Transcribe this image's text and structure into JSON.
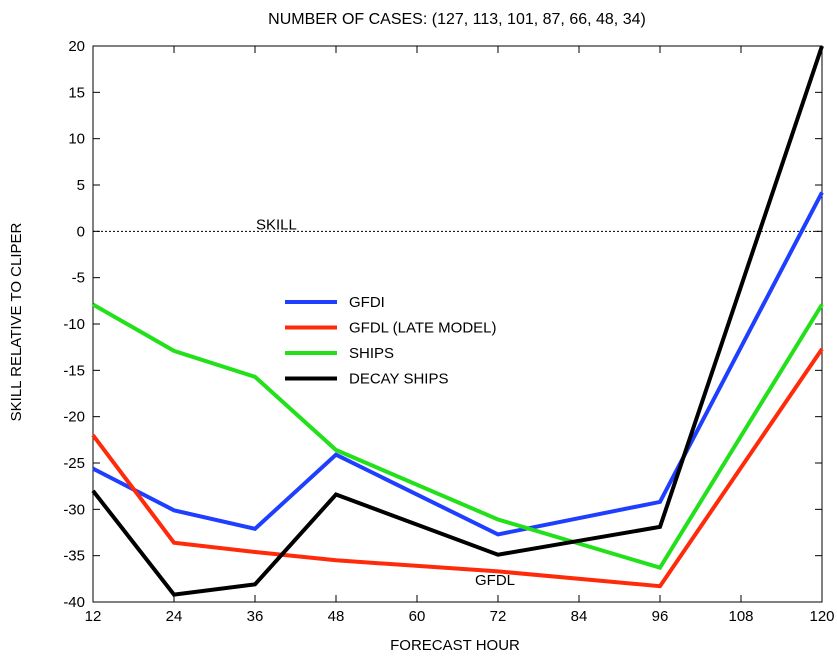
{
  "chart_data": {
    "type": "line",
    "title": "NUMBER OF CASES:  (127, 113, 101, 87, 66, 48, 34)",
    "xlabel": "FORECAST HOUR",
    "ylabel": "SKILL RELATIVE TO CLIPER",
    "xlim": [
      12,
      120
    ],
    "ylim": [
      -40,
      20
    ],
    "x_ticks": [
      12,
      24,
      36,
      48,
      60,
      72,
      84,
      96,
      108,
      120
    ],
    "y_ticks": [
      20,
      15,
      10,
      5,
      0,
      -5,
      -10,
      -15,
      -20,
      -25,
      -30,
      -35,
      -40
    ],
    "grid": false,
    "legend_position": "center",
    "reference_line": {
      "y": 0,
      "label": "SKILL"
    },
    "annotations": [
      {
        "text": "GFDL",
        "x": 72,
        "y": -37
      }
    ],
    "series": [
      {
        "name": "GFDI",
        "color": "#1f3fff",
        "x": [
          12,
          24,
          36,
          48,
          72,
          96,
          120
        ],
        "y": [
          -25.6,
          -30.1,
          -32.1,
          -24.1,
          -32.7,
          -29.2,
          4.2
        ]
      },
      {
        "name": "GFDL (LATE MODEL)",
        "color": "#ff2a0a",
        "x": [
          12,
          24,
          36,
          48,
          72,
          96,
          120
        ],
        "y": [
          -22.0,
          -33.6,
          -34.6,
          -35.5,
          -36.7,
          -38.3,
          -12.7
        ]
      },
      {
        "name": "SHIPS",
        "color": "#22e01a",
        "x": [
          12,
          24,
          36,
          48,
          72,
          96,
          120
        ],
        "y": [
          -7.9,
          -12.9,
          -15.7,
          -23.6,
          -31.1,
          -36.3,
          -7.9
        ]
      },
      {
        "name": "DECAY SHIPS",
        "color": "#000000",
        "x": [
          12,
          24,
          36,
          48,
          72,
          96,
          120
        ],
        "y": [
          -28.0,
          -39.2,
          -38.1,
          -28.4,
          -34.9,
          -31.9,
          20.0
        ]
      }
    ]
  }
}
